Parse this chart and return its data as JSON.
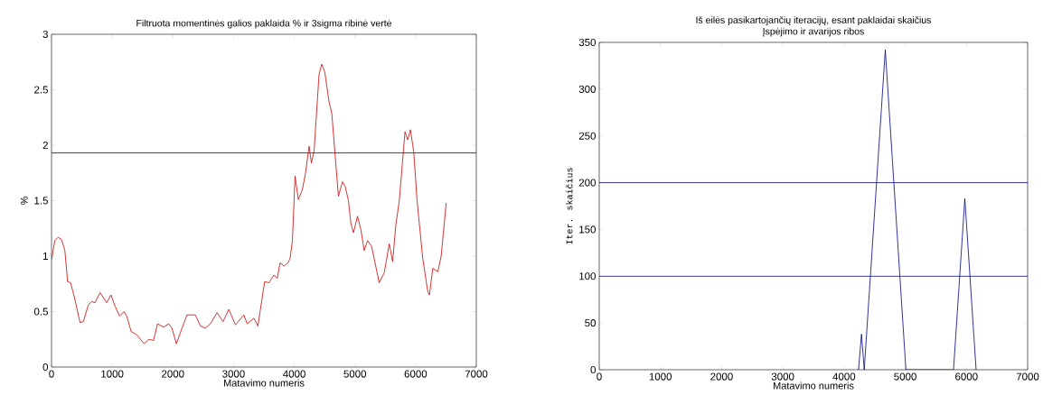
{
  "chart_data": [
    {
      "type": "line",
      "title": "Filtruota momentinės galios paklaida % ir 3sigma ribinė vertė",
      "xlabel": "Matavimo numeris",
      "ylabel": "%",
      "x": [
        0,
        55,
        110,
        165,
        220,
        265,
        315,
        385,
        470,
        525,
        607,
        662,
        717,
        800,
        910,
        980,
        1047,
        1120,
        1196,
        1240,
        1312,
        1406,
        1527,
        1599,
        1681,
        1748,
        1847,
        1930,
        1985,
        2057,
        2150,
        2233,
        2370,
        2453,
        2535,
        2618,
        2728,
        2827,
        2921,
        3031,
        3169,
        3224,
        3335,
        3401,
        3512,
        3583,
        3666,
        3721,
        3765,
        3831,
        3898,
        3931,
        3970,
        3997,
        4013,
        4068,
        4134,
        4189,
        4244,
        4283,
        4327,
        4409,
        4453,
        4503,
        4574,
        4618,
        4728,
        4794,
        4838,
        4893,
        4932,
        4976,
        5042,
        5097,
        5153,
        5208,
        5274,
        5400,
        5483,
        5566,
        5621,
        5676,
        5731,
        5825,
        5869,
        5914,
        5969,
        6024,
        6117,
        6200,
        6228,
        6283,
        6366,
        6421,
        6504
      ],
      "values": [
        0.97,
        1.14,
        1.17,
        1.15,
        1.05,
        0.77,
        0.76,
        0.61,
        0.4,
        0.41,
        0.56,
        0.59,
        0.58,
        0.67,
        0.58,
        0.65,
        0.55,
        0.46,
        0.5,
        0.46,
        0.32,
        0.29,
        0.21,
        0.25,
        0.24,
        0.39,
        0.36,
        0.39,
        0.35,
        0.21,
        0.35,
        0.47,
        0.47,
        0.37,
        0.35,
        0.39,
        0.49,
        0.41,
        0.52,
        0.38,
        0.47,
        0.39,
        0.44,
        0.37,
        0.77,
        0.76,
        0.83,
        0.8,
        0.94,
        0.91,
        0.94,
        0.98,
        1.14,
        1.5,
        1.72,
        1.51,
        1.6,
        1.76,
        1.99,
        1.84,
        1.95,
        2.64,
        2.73,
        2.66,
        2.39,
        2.29,
        1.54,
        1.67,
        1.63,
        1.5,
        1.3,
        1.21,
        1.36,
        1.24,
        1.05,
        1.14,
        1.09,
        0.76,
        0.85,
        1.11,
        0.95,
        1.29,
        1.5,
        2.12,
        2.05,
        2.14,
        1.94,
        1.5,
        0.98,
        0.68,
        0.65,
        0.89,
        0.86,
        1.0,
        1.48
      ],
      "color": "#cc0000",
      "xlim": [
        0,
        7000
      ],
      "ylim": [
        0,
        3
      ],
      "xticks": [
        0,
        1000,
        2000,
        3000,
        4000,
        5000,
        6000,
        7000
      ],
      "yticks": [
        0,
        0.5,
        1,
        1.5,
        2,
        2.5,
        3
      ],
      "ref_lines": [
        {
          "axis": "y",
          "value": 1.93,
          "color": "#000080"
        }
      ]
    },
    {
      "type": "line",
      "title": "Iš eilės pasikartojančių iteracijų, esant paklaidai skaičius",
      "subtitle": "Įspėjimo ir avarijos ribos",
      "xlabel": "Matavimo numeris",
      "ylabel": "Iter. skaičius",
      "x": [
        4237,
        4285,
        4330,
        4674,
        5011,
        5789,
        5974,
        6158
      ],
      "values": [
        0,
        38,
        0,
        342,
        0,
        0,
        183,
        0
      ],
      "color": "#000080",
      "xlim": [
        0,
        7000
      ],
      "ylim": [
        0,
        350
      ],
      "xticks": [
        0,
        1000,
        2000,
        3000,
        4000,
        5000,
        6000,
        7000
      ],
      "yticks": [
        0,
        50,
        100,
        150,
        200,
        250,
        300,
        350
      ],
      "ref_lines": [
        {
          "axis": "y",
          "value": 200,
          "color": "#000080"
        },
        {
          "axis": "y",
          "value": 100,
          "color": "#000080"
        }
      ]
    }
  ]
}
